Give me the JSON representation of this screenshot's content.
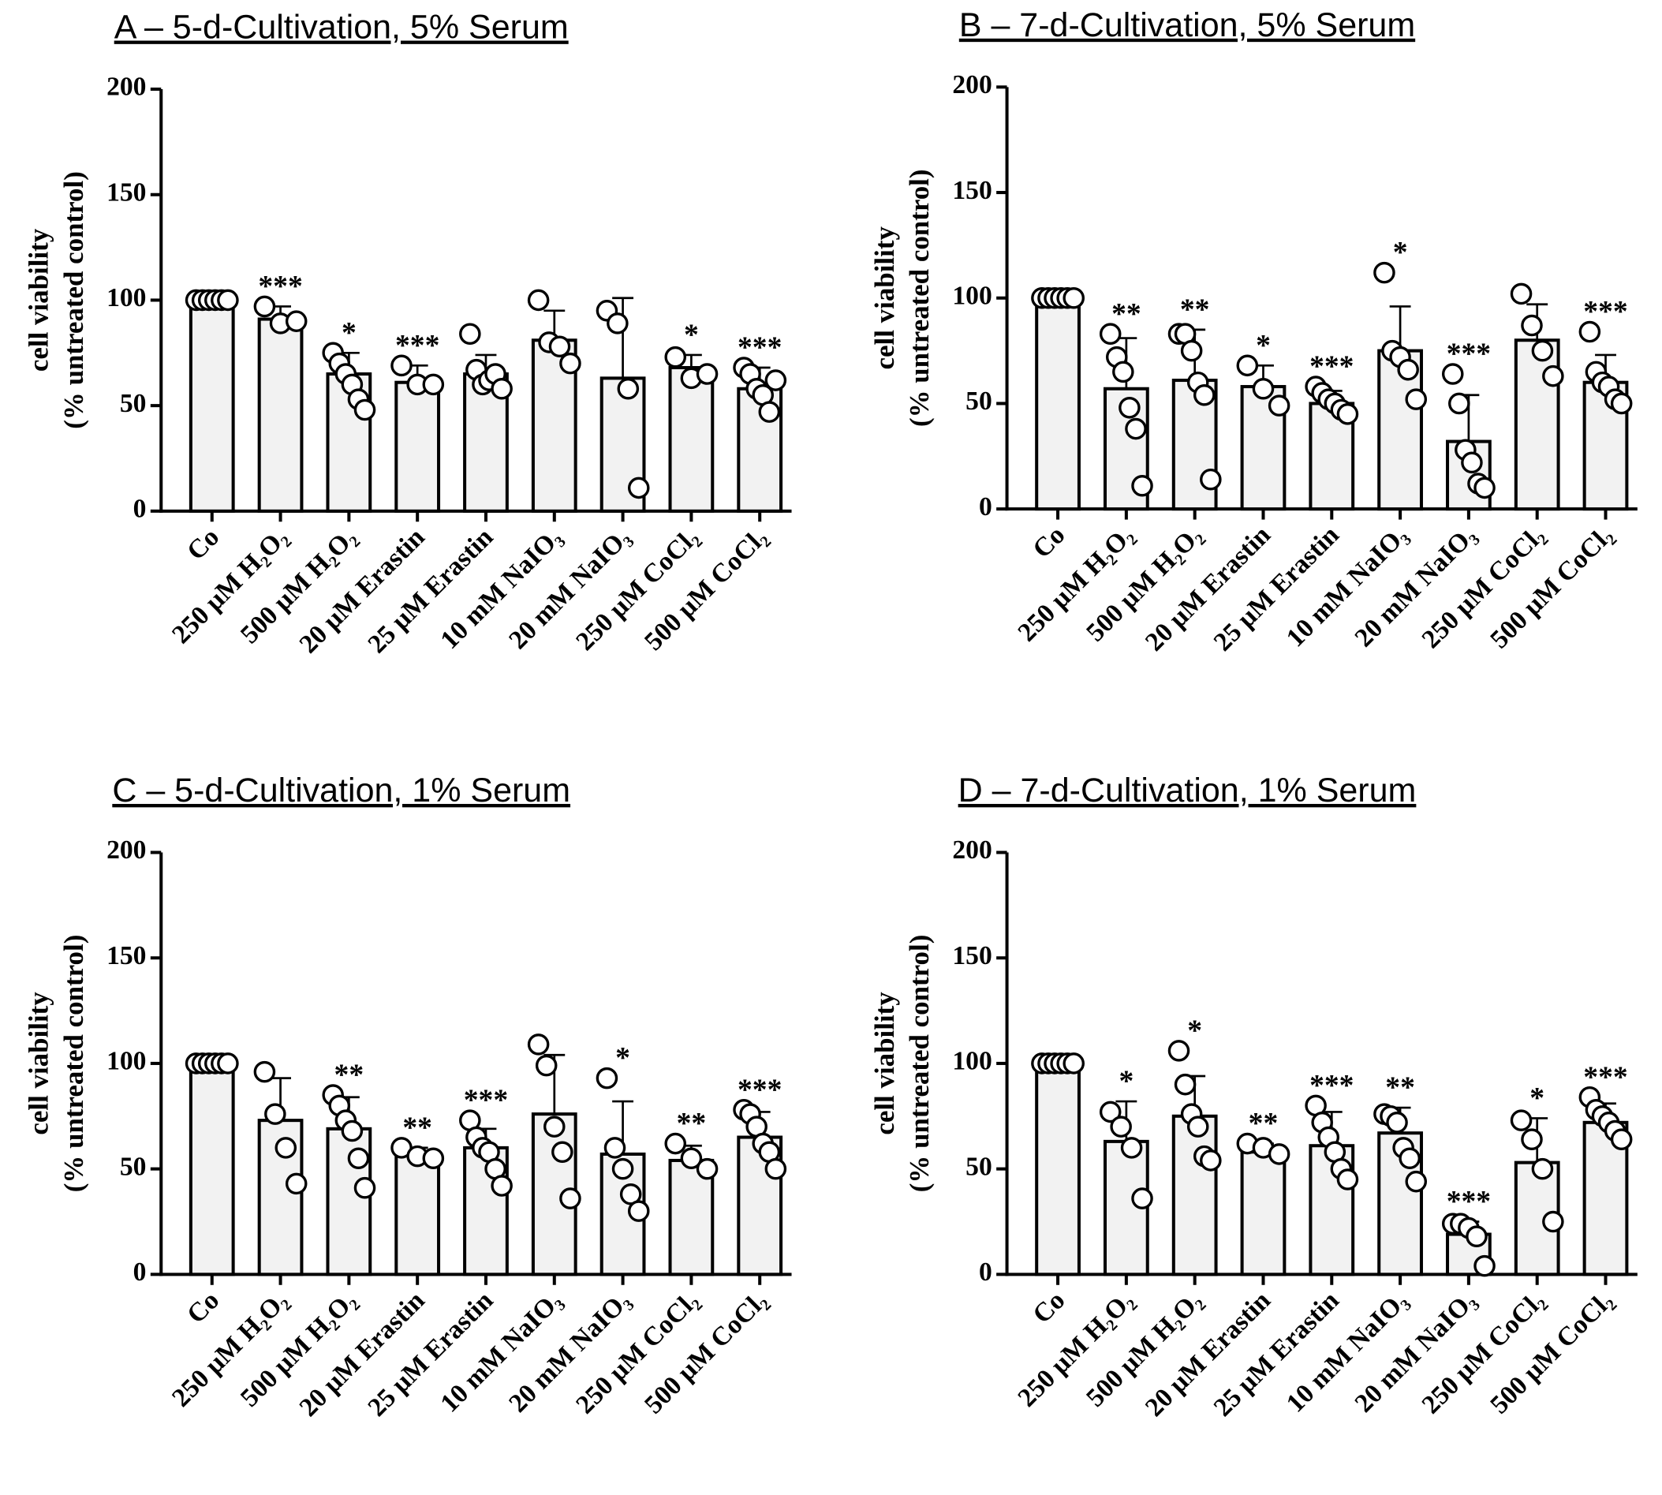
{
  "chart_data": [
    {
      "type": "bar",
      "title": "A – 5-d-Cultivation, 5% Serum",
      "ylabel": [
        "cell viability",
        "(% untreated control)"
      ],
      "categories": [
        "Co",
        "250 µM H₂O₂",
        "500 µM H₂O₂",
        "20 µM Erastin",
        "25 µM Erastin",
        "10 mM NaIO₃",
        "20 mM NaIO₃",
        "250 µM CoCl₂",
        "500 µM CoCl₂"
      ],
      "values": [
        100,
        91,
        65,
        61,
        65,
        81,
        63,
        68,
        58
      ],
      "errors": [
        0,
        6,
        10,
        8,
        9,
        14,
        38,
        6,
        10
      ],
      "points": [
        [
          100,
          100,
          100,
          100,
          100,
          100
        ],
        [
          97,
          89,
          90
        ],
        [
          75,
          70,
          65,
          60,
          53,
          48
        ],
        [
          69,
          60,
          60
        ],
        [
          84,
          67,
          60,
          62,
          65,
          58
        ],
        [
          100,
          80,
          78,
          70
        ],
        [
          95,
          89,
          58,
          11
        ],
        [
          73,
          63,
          65
        ],
        [
          68,
          65,
          58,
          55,
          47,
          62
        ]
      ],
      "annotations": [
        null,
        "***",
        "*",
        "***",
        null,
        null,
        null,
        "*",
        "***"
      ],
      "color": "#f2f2f2",
      "ylim": [
        0,
        200
      ],
      "yticks": [
        0,
        50,
        100,
        150,
        200
      ]
    },
    {
      "type": "bar",
      "title": "B – 7-d-Cultivation, 5% Serum",
      "ylabel": [
        "cell viability",
        "(% untreated control)"
      ],
      "categories": [
        "Co",
        "250 µM H₂O₂",
        "500 µM H₂O₂",
        "20 µM Erastin",
        "25 µM Erastin",
        "10 mM NaIO₃",
        "20 mM NaIO₃",
        "250 µM CoCl₂",
        "500 µM CoCl₂"
      ],
      "values": [
        100,
        57,
        61,
        58,
        50,
        75,
        32,
        80,
        60
      ],
      "errors": [
        0,
        24,
        24,
        10,
        6,
        21,
        22,
        17,
        13
      ],
      "points": [
        [
          100,
          100,
          100,
          100,
          100,
          100
        ],
        [
          83,
          72,
          65,
          48,
          38,
          11
        ],
        [
          83,
          83,
          75,
          60,
          54,
          14
        ],
        [
          68,
          57,
          49
        ],
        [
          58,
          55,
          52,
          50,
          47,
          45
        ],
        [
          112,
          75,
          72,
          66,
          52
        ],
        [
          64,
          50,
          28,
          22,
          12,
          10
        ],
        [
          102,
          87,
          75,
          63
        ],
        [
          84,
          65,
          60,
          58,
          52,
          50
        ]
      ],
      "annotations": [
        null,
        "**",
        "**",
        "*",
        "***",
        "*",
        "***",
        null,
        "***"
      ],
      "color": "#f2f2f2",
      "ylim": [
        0,
        200
      ],
      "yticks": [
        0,
        50,
        100,
        150,
        200
      ]
    },
    {
      "type": "bar",
      "title": "C – 5-d-Cultivation, 1% Serum",
      "ylabel": [
        "cell viability",
        "(% untreated control)"
      ],
      "categories": [
        "Co",
        "250 µM H₂O₂",
        "500 µM H₂O₂",
        "20 µM Erastin",
        "25 µM Erastin",
        "10 mM NaIO₃",
        "20 mM NaIO₃",
        "250 µM CoCl₂",
        "500 µM CoCl₂"
      ],
      "values": [
        100,
        73,
        69,
        57,
        60,
        76,
        57,
        54,
        65
      ],
      "errors": [
        0,
        20,
        15,
        3,
        9,
        28,
        25,
        7,
        12
      ],
      "points": [
        [
          100,
          100,
          100,
          100,
          100,
          100
        ],
        [
          96,
          76,
          60,
          43
        ],
        [
          85,
          80,
          73,
          68,
          55,
          41
        ],
        [
          60,
          56,
          55
        ],
        [
          73,
          65,
          60,
          58,
          50,
          42
        ],
        [
          109,
          99,
          70,
          58,
          36
        ],
        [
          93,
          60,
          50,
          38,
          30
        ],
        [
          62,
          55,
          50
        ],
        [
          78,
          76,
          70,
          62,
          58,
          50
        ]
      ],
      "annotations": [
        null,
        null,
        "**",
        "**",
        "***",
        null,
        "*",
        "**",
        "***"
      ],
      "color": "#f2f2f2",
      "ylim": [
        0,
        200
      ],
      "yticks": [
        0,
        50,
        100,
        150,
        200
      ]
    },
    {
      "type": "bar",
      "title": "D – 7-d-Cultivation, 1% Serum",
      "ylabel": [
        "cell viability",
        "(% untreated control)"
      ],
      "categories": [
        "Co",
        "250 µM H₂O₂",
        "500 µM H₂O₂",
        "20 µM Erastin",
        "25 µM Erastin",
        "10 mM NaIO₃",
        "20 mM NaIO₃",
        "250 µM CoCl₂",
        "500 µM CoCl₂"
      ],
      "values": [
        100,
        63,
        75,
        58,
        61,
        67,
        19,
        53,
        72
      ],
      "errors": [
        0,
        19,
        19,
        4,
        16,
        12,
        6,
        21,
        9
      ],
      "points": [
        [
          100,
          100,
          100,
          100,
          100,
          100
        ],
        [
          77,
          70,
          60,
          36
        ],
        [
          106,
          90,
          76,
          70,
          56,
          54
        ],
        [
          62,
          60,
          57
        ],
        [
          80,
          72,
          65,
          58,
          50,
          45
        ],
        [
          76,
          75,
          72,
          60,
          55,
          44
        ],
        [
          24,
          24,
          22,
          18,
          4
        ],
        [
          73,
          64,
          50,
          25
        ],
        [
          84,
          78,
          75,
          72,
          68,
          64
        ]
      ],
      "annotations": [
        null,
        "*",
        "*",
        "**",
        "***",
        "**",
        "***",
        "*",
        "***"
      ],
      "color": "#f2f2f2",
      "ylim": [
        0,
        200
      ],
      "yticks": [
        0,
        50,
        100,
        150,
        200
      ]
    }
  ]
}
